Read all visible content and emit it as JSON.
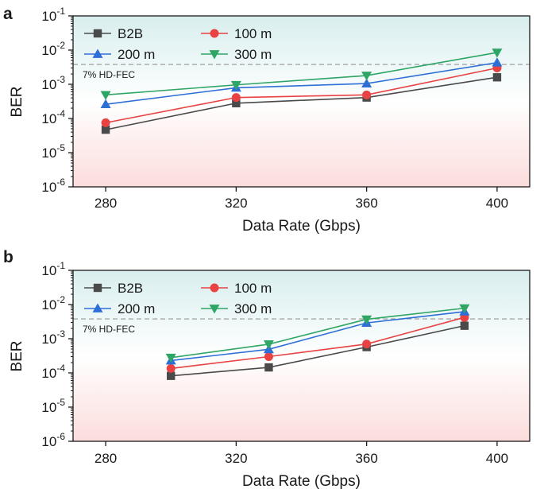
{
  "colors": {
    "B2B": "#4a4a4a",
    "100 m": "#e84242",
    "200 m": "#2e6fd6",
    "300 m": "#2fa566",
    "threshold": "#a6a6a6",
    "bg_top": "#d8eeee",
    "bg_mid": "#ffffff",
    "bg_bottom": "#fbdcdc"
  },
  "chart_data": [
    {
      "panel": "a",
      "type": "line",
      "xlabel": "Data Rate (Gbps)",
      "ylabel": "BER",
      "xlim": [
        270,
        410
      ],
      "xticks": [
        280,
        320,
        360,
        400
      ],
      "ylim_log10": [
        -6,
        -1
      ],
      "yticks": [
        {
          "base": "10",
          "exp": "-1"
        },
        {
          "base": "10",
          "exp": "-2"
        },
        {
          "base": "10",
          "exp": "-3"
        },
        {
          "base": "10",
          "exp": "-4"
        },
        {
          "base": "10",
          "exp": "-5"
        },
        {
          "base": "10",
          "exp": "-6"
        }
      ],
      "threshold": {
        "value": 0.0038,
        "label": "7%  HD-FEC"
      },
      "legend_position": "top-left",
      "series": [
        {
          "name": "B2B",
          "marker": "square",
          "x": [
            280,
            320,
            360,
            400
          ],
          "y": [
            4.7e-05,
            0.00028,
            0.00041,
            0.0016
          ]
        },
        {
          "name": "100 m",
          "marker": "circle",
          "x": [
            280,
            320,
            360,
            400
          ],
          "y": [
            7.5e-05,
            0.00041,
            0.00049,
            0.003
          ]
        },
        {
          "name": "200 m",
          "marker": "triangle-up",
          "x": [
            280,
            320,
            360,
            400
          ],
          "y": [
            0.00026,
            0.00079,
            0.00105,
            0.0043
          ]
        },
        {
          "name": "300 m",
          "marker": "triangle-down",
          "x": [
            280,
            320,
            360,
            400
          ],
          "y": [
            0.00049,
            0.00096,
            0.0018,
            0.0085
          ]
        }
      ]
    },
    {
      "panel": "b",
      "type": "line",
      "xlabel": "Data Rate (Gbps)",
      "ylabel": "BER",
      "xlim": [
        270,
        410
      ],
      "xticks": [
        280,
        320,
        360,
        400
      ],
      "ylim_log10": [
        -6,
        -1
      ],
      "yticks": [
        {
          "base": "10",
          "exp": "-1"
        },
        {
          "base": "10",
          "exp": "-2"
        },
        {
          "base": "10",
          "exp": "-3"
        },
        {
          "base": "10",
          "exp": "-4"
        },
        {
          "base": "10",
          "exp": "-5"
        },
        {
          "base": "10",
          "exp": "-6"
        }
      ],
      "threshold": {
        "value": 0.0038,
        "label": "7%  HD-FEC"
      },
      "legend_position": "top-left",
      "series": [
        {
          "name": "B2B",
          "marker": "square",
          "x": [
            300,
            330,
            360,
            390
          ],
          "y": [
            8.2e-05,
            0.000145,
            0.00057,
            0.0024
          ]
        },
        {
          "name": "100 m",
          "marker": "circle",
          "x": [
            300,
            330,
            360,
            390
          ],
          "y": [
            0.000135,
            0.0003,
            0.0007,
            0.0042
          ]
        },
        {
          "name": "200 m",
          "marker": "triangle-up",
          "x": [
            300,
            330,
            360,
            390
          ],
          "y": [
            0.00023,
            0.00049,
            0.0029,
            0.0062
          ]
        },
        {
          "name": "300 m",
          "marker": "triangle-down",
          "x": [
            300,
            330,
            360,
            390
          ],
          "y": [
            0.00028,
            0.00069,
            0.0037,
            0.0078
          ]
        }
      ]
    }
  ]
}
